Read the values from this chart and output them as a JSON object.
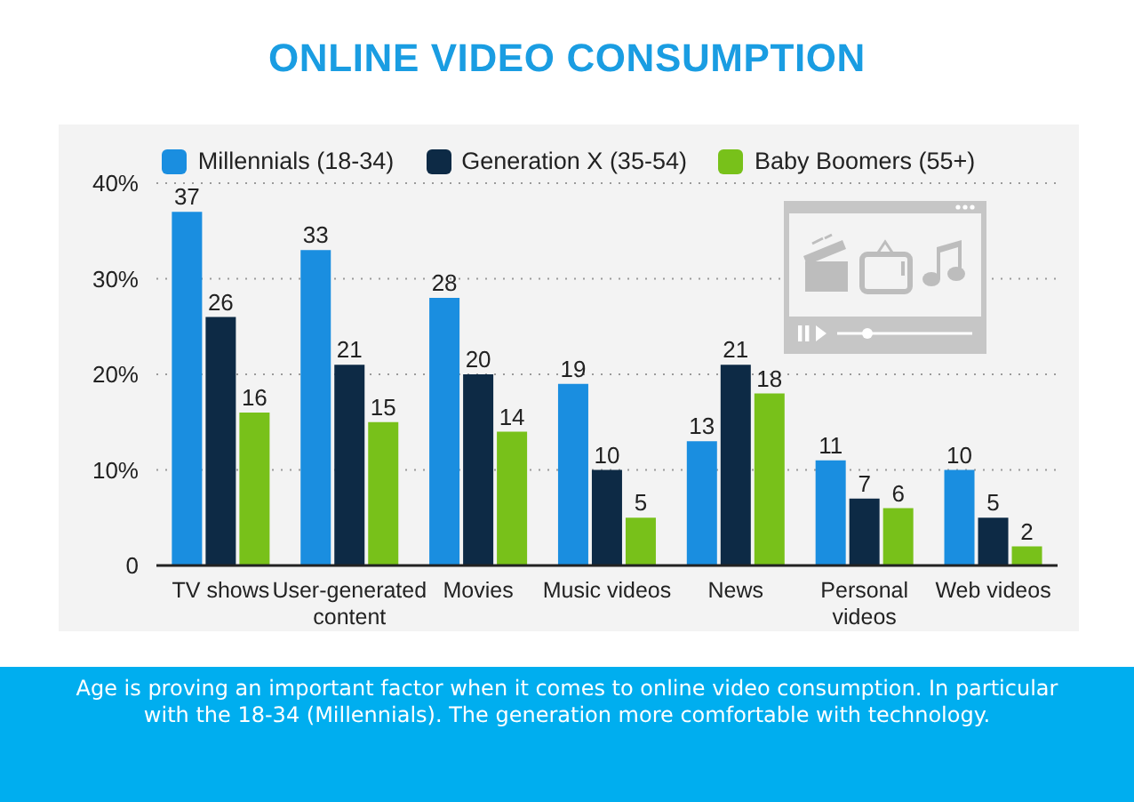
{
  "chart_data": {
    "type": "bar",
    "title": "ONLINE VIDEO CONSUMPTION",
    "categories": [
      "TV shows",
      "User-generated content",
      "Movies",
      "Music videos",
      "News",
      "Personal videos",
      "Web videos"
    ],
    "series": [
      {
        "name": "Millennials (18-34)",
        "color": "#1a8ee0",
        "values": [
          37,
          33,
          28,
          19,
          13,
          11,
          10
        ]
      },
      {
        "name": "Generation X (35-54)",
        "color": "#0d2a45",
        "values": [
          26,
          21,
          20,
          10,
          21,
          7,
          5
        ]
      },
      {
        "name": "Baby Boomers (55+)",
        "color": "#78c11a",
        "values": [
          16,
          15,
          14,
          5,
          18,
          6,
          2
        ]
      }
    ],
    "ylim": [
      0,
      40
    ],
    "yticks": [
      0,
      {
        "value": 10,
        "label": "10%"
      },
      {
        "value": 20,
        "label": "20%"
      },
      {
        "value": 30,
        "label": "30%"
      },
      {
        "value": 40,
        "label": "40%"
      }
    ],
    "grid": "y",
    "legend": "top",
    "data_labels": true,
    "annotations": [
      "Age is proving an important factor when it comes to online video consumption. In particular with the 18-34 (Millennials). The generation more comfortable with technology."
    ]
  }
}
